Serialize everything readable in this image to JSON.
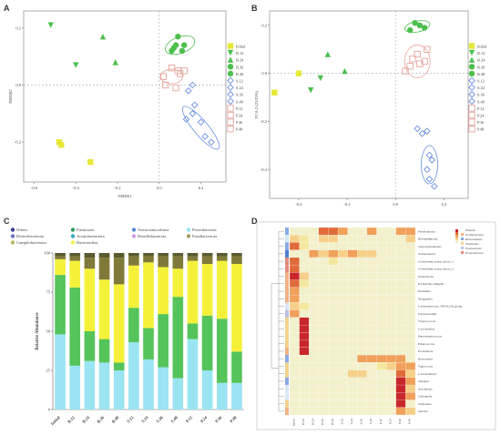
{
  "panels": {
    "A": {
      "label": "A",
      "xlabel": "NMDS1",
      "ylabel": "NMDS2",
      "xticks": [
        "-0.6",
        "-0.4",
        "-0.2",
        "0.0",
        "0.2"
      ],
      "yticks": [
        "0.2",
        "0.0",
        "-0.2"
      ],
      "legend": [
        "Initial",
        "B.12",
        "B.24",
        "B.36",
        "B.48",
        "S.12",
        "S.24",
        "S.36",
        "S.48",
        "P.12",
        "P.24",
        "P.36",
        "P.48"
      ]
    },
    "B": {
      "label": "B",
      "xlabel": "PCA 1 (36.96%)",
      "ylabel": "PCA 2 (23.93%)",
      "xticks": [
        "-0.4",
        "-0.2",
        "0.0",
        "0.2"
      ],
      "yticks": [
        "0.2",
        "0.0",
        "-0.2",
        "-0.4"
      ],
      "legend": [
        "Initial",
        "B.12",
        "B.24",
        "B.36",
        "B.48",
        "S.12",
        "S.24",
        "S.36",
        "S.48",
        "P.12",
        "P.24",
        "P.36",
        "P.48"
      ]
    },
    "C": {
      "label": "C",
      "ylabel": "Relative Abundance"
    },
    "D": {
      "label": "D",
      "scale_labels": [
        "Phylum",
        "Actinobacteria",
        "Bacteroidetes",
        "Firmicutes",
        "Fusobacteria",
        "Proteobacteria"
      ],
      "rows": [
        "Pseudomonas",
        "Brevundimonas",
        "Stenotrophomonas",
        "Acinetobacter",
        "Clostridium_sensu_stricto_1",
        "Clostridium_sensu_stricto_2",
        "Enterobacter",
        "Escherichia-Shigella",
        "Klebsiella",
        "Morganella",
        "Lachnospiraceae_NK4A136_group",
        "Fusobacterium",
        "Streptococcus",
        "Lactobacillus",
        "Peptostreptococcus",
        "Enterococcus",
        "Providencia",
        "Bacteroides",
        "Vagococcus",
        "Lactobacillus2",
        "Alistipes",
        "Aeromonas",
        "Gilliamella",
        "Veillonella",
        "Serratia"
      ],
      "cols": [
        "Initial",
        "B.12",
        "B.24",
        "B.36",
        "B.48",
        "S.12",
        "S.24",
        "S.36",
        "S.48",
        "P.12",
        "P.24",
        "P.36",
        "P.48"
      ]
    }
  },
  "colors": {
    "initial": "#e8e83a",
    "bran": "#4cbf4c",
    "soy": "#6a8fe0",
    "pork": "#e6a49a",
    "heat_high": "#c8262a",
    "heat_mid": "#f3e88a",
    "heat_low": "#ede9c8"
  },
  "chart_data": [
    {
      "type": "scatter",
      "title": "",
      "xlabel": "NMDS1",
      "ylabel": "NMDS2",
      "xlim": [
        -0.65,
        0.32
      ],
      "ylim": [
        -0.34,
        0.26
      ],
      "series": [
        {
          "name": "Initial",
          "points": [
            [
              -0.48,
              -0.2
            ],
            [
              -0.47,
              -0.21
            ],
            [
              -0.33,
              -0.27
            ]
          ]
        },
        {
          "name": "B.12",
          "points": [
            [
              -0.52,
              0.21
            ],
            [
              -0.4,
              0.07
            ]
          ]
        },
        {
          "name": "B.24",
          "points": [
            [
              -0.21,
              0.08
            ],
            [
              -0.27,
              0.17
            ]
          ]
        },
        {
          "name": "B.36",
          "points": [
            [
              0.08,
              0.14
            ],
            [
              0.11,
              0.12
            ],
            [
              0.06,
              0.12
            ]
          ]
        },
        {
          "name": "B.48",
          "points": [
            [
              0.09,
              0.17
            ],
            [
              0.07,
              0.13
            ],
            [
              0.12,
              0.14
            ]
          ]
        },
        {
          "name": "S.12",
          "points": [
            [
              0.16,
              0.0
            ],
            [
              0.13,
              -0.12
            ]
          ]
        },
        {
          "name": "S.24",
          "points": [
            [
              0.17,
              -0.07
            ],
            [
              0.14,
              -0.02
            ]
          ]
        },
        {
          "name": "S.36",
          "points": [
            [
              0.2,
              -0.13
            ],
            [
              0.16,
              -0.1
            ]
          ]
        },
        {
          "name": "S.48",
          "points": [
            [
              0.22,
              -0.18
            ],
            [
              0.25,
              -0.2
            ]
          ]
        },
        {
          "name": "P.12",
          "points": [
            [
              0.06,
              0.06
            ],
            [
              0.02,
              0.03
            ]
          ]
        },
        {
          "name": "P.24",
          "points": [
            [
              0.09,
              0.05
            ],
            [
              0.03,
              0.0
            ]
          ]
        },
        {
          "name": "P.36",
          "points": [
            [
              0.12,
              0.05
            ],
            [
              0.08,
              -0.01
            ]
          ]
        },
        {
          "name": "P.48",
          "points": [
            [
              0.1,
              0.04
            ]
          ]
        }
      ]
    },
    {
      "type": "scatter",
      "title": "",
      "xlabel": "PCA 1 (36.96%)",
      "ylabel": "PCA 2 (23.93%)",
      "xlim": [
        -0.52,
        0.3
      ],
      "ylim": [
        -0.52,
        0.26
      ],
      "series": [
        {
          "name": "Initial",
          "points": [
            [
              -0.5,
              -0.08
            ],
            [
              -0.4,
              0.0
            ]
          ]
        },
        {
          "name": "B.12",
          "points": [
            [
              -0.31,
              -0.02
            ],
            [
              -0.35,
              -0.07
            ]
          ]
        },
        {
          "name": "B.24",
          "points": [
            [
              -0.21,
              0.01
            ],
            [
              -0.28,
              0.08
            ]
          ]
        },
        {
          "name": "B.36",
          "points": [
            [
              0.06,
              0.18
            ],
            [
              0.1,
              0.2
            ]
          ]
        },
        {
          "name": "B.48",
          "points": [
            [
              0.08,
              0.21
            ],
            [
              0.12,
              0.19
            ]
          ]
        },
        {
          "name": "S.12",
          "points": [
            [
              0.09,
              -0.23
            ],
            [
              0.11,
              -0.25
            ]
          ]
        },
        {
          "name": "S.24",
          "points": [
            [
              0.13,
              -0.24
            ],
            [
              0.14,
              -0.34
            ]
          ]
        },
        {
          "name": "S.36",
          "points": [
            [
              0.15,
              -0.36
            ],
            [
              0.13,
              -0.4
            ]
          ]
        },
        {
          "name": "S.48",
          "points": [
            [
              0.16,
              -0.47
            ],
            [
              0.14,
              -0.44
            ]
          ]
        },
        {
          "name": "P.12",
          "points": [
            [
              0.04,
              0.01
            ],
            [
              0.06,
              0.03
            ]
          ]
        },
        {
          "name": "P.24",
          "points": [
            [
              0.07,
              0.06
            ],
            [
              0.1,
              0.04
            ]
          ]
        },
        {
          "name": "P.36",
          "points": [
            [
              0.09,
              0.08
            ],
            [
              0.12,
              0.05
            ]
          ]
        },
        {
          "name": "P.48",
          "points": [
            [
              0.13,
              0.1
            ]
          ]
        }
      ]
    },
    {
      "type": "bar",
      "stacked": true,
      "title": "",
      "xlabel": "",
      "ylabel": "Relative Abundance",
      "ylim": [
        0,
        100
      ],
      "categories": [
        "Initial",
        "B.12",
        "B.24",
        "B.36",
        "B.48",
        "S.12",
        "S.24",
        "S.36",
        "S.48",
        "P.12",
        "P.24",
        "P.36",
        "P.48"
      ],
      "legend": [
        "Others",
        "Firmicutes",
        "Verrucomicrobiota",
        "Proteobacteria",
        "Deferribacterota",
        "Actinobacteriota",
        "Desulfobacterota",
        "Fusobacteriota",
        "Campilobacterota",
        "Bacteroidota"
      ],
      "series": [
        {
          "name": "Proteobacteria",
          "values": [
            48,
            28,
            31,
            30,
            25,
            43,
            32,
            27,
            20,
            45,
            25,
            17,
            17
          ]
        },
        {
          "name": "Firmicutes",
          "values": [
            38,
            50,
            19,
            15,
            5,
            22,
            20,
            34,
            52,
            10,
            35,
            41,
            20
          ]
        },
        {
          "name": "Bacteroidota",
          "values": [
            10,
            17,
            40,
            38,
            50,
            27,
            42,
            30,
            18,
            40,
            33,
            37,
            56
          ]
        },
        {
          "name": "Fusobacteriota",
          "values": [
            2,
            3,
            7,
            14,
            17,
            6,
            4,
            7,
            8,
            3,
            5,
            3,
            5
          ]
        },
        {
          "name": "Others",
          "values": [
            2,
            2,
            3,
            3,
            3,
            2,
            2,
            2,
            2,
            2,
            2,
            2,
            2
          ]
        }
      ]
    },
    {
      "type": "heatmap",
      "title": "",
      "rows": 25,
      "cols": 13
    }
  ]
}
